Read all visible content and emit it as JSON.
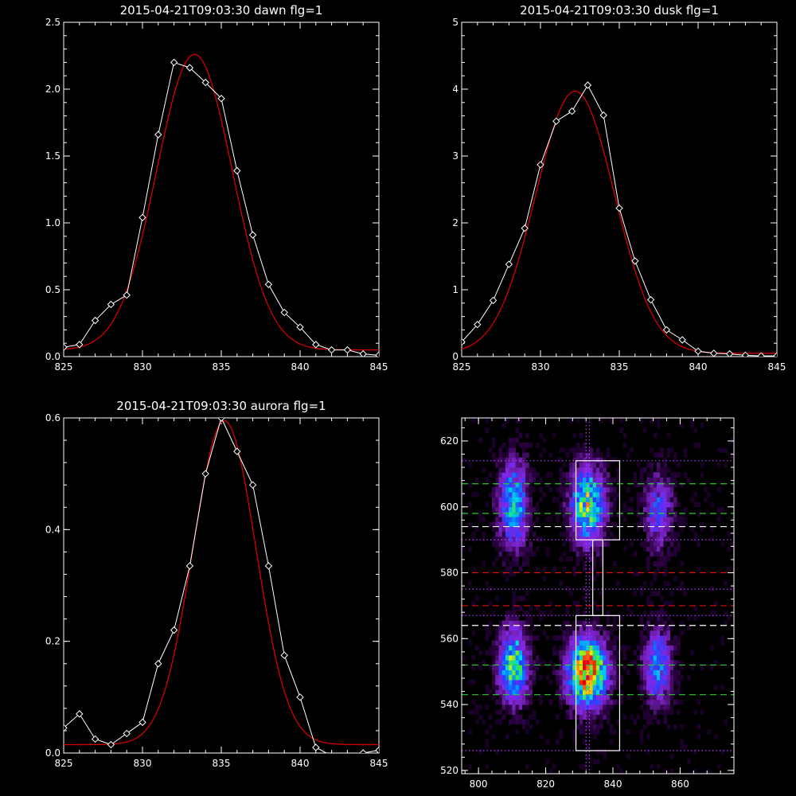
{
  "chart_data": [
    {
      "type": "line",
      "title": "2015-04-21T09:03:30 dawn flg=1",
      "xlim": [
        825,
        845
      ],
      "ylim": [
        0,
        2.5
      ],
      "xticks": [
        825,
        830,
        835,
        840,
        845
      ],
      "yticks": [
        0.0,
        0.5,
        1.0,
        1.5,
        2.0,
        2.5
      ],
      "ytick_labels": [
        "0.0",
        "0.5",
        "1.0",
        "1.5",
        "2.0",
        "2.5"
      ],
      "series": [
        {
          "style": "white-diamond-line",
          "x": [
            825,
            826,
            827,
            828,
            829,
            830,
            831,
            832,
            833,
            834,
            835,
            836,
            837,
            838,
            839,
            840,
            841,
            842,
            843,
            844,
            845
          ],
          "y": [
            0.07,
            0.09,
            0.27,
            0.39,
            0.46,
            1.04,
            1.66,
            2.2,
            2.16,
            2.05,
            1.93,
            1.39,
            0.91,
            0.54,
            0.33,
            0.22,
            0.09,
            0.05,
            0.05,
            0.02,
            0.01
          ]
        },
        {
          "style": "red-fit",
          "fit": {
            "amp": 2.21,
            "center": 833.3,
            "sigma": 2.4,
            "base": 0.05
          }
        }
      ],
      "colors": {
        "data": "#ffffff",
        "fit": "#d40000"
      }
    },
    {
      "type": "line",
      "title": "2015-04-21T09:03:30 dusk flg=1",
      "xlim": [
        825,
        845
      ],
      "ylim": [
        0,
        5
      ],
      "xticks": [
        825,
        830,
        835,
        840,
        845
      ],
      "yticks": [
        0,
        1,
        2,
        3,
        4,
        5
      ],
      "ytick_labels": [
        "0",
        "1",
        "2",
        "3",
        "4",
        "5"
      ],
      "series": [
        {
          "style": "white-diamond-line",
          "x": [
            825,
            826,
            827,
            828,
            829,
            830,
            831,
            832,
            833,
            834,
            835,
            836,
            837,
            838,
            839,
            840,
            841,
            842,
            843,
            844,
            845
          ],
          "y": [
            0.22,
            0.48,
            0.84,
            1.38,
            1.92,
            2.87,
            3.52,
            3.67,
            4.06,
            3.61,
            2.22,
            1.43,
            0.85,
            0.4,
            0.25,
            0.08,
            0.05,
            0.04,
            0.02,
            0.01,
            0.01
          ]
        },
        {
          "style": "red-fit",
          "fit": {
            "amp": 3.92,
            "center": 832.2,
            "sigma": 2.5,
            "base": 0.05
          }
        }
      ],
      "colors": {
        "data": "#ffffff",
        "fit": "#d40000"
      }
    },
    {
      "type": "line",
      "title": "2015-04-21T09:03:30 aurora flg=1",
      "xlim": [
        825,
        845
      ],
      "ylim": [
        0,
        0.6
      ],
      "xticks": [
        825,
        830,
        835,
        840,
        845
      ],
      "yticks": [
        0.0,
        0.2,
        0.4,
        0.6
      ],
      "ytick_labels": [
        "0.0",
        "0.2",
        "0.4",
        "0.6"
      ],
      "series": [
        {
          "style": "white-diamond-line",
          "x": [
            825,
            826,
            827,
            828,
            829,
            830,
            831,
            832,
            833,
            834,
            835,
            836,
            837,
            838,
            839,
            840,
            841,
            842,
            843,
            844,
            845
          ],
          "y": [
            0.045,
            0.07,
            0.025,
            0.015,
            0.035,
            0.055,
            0.16,
            0.22,
            0.335,
            0.5,
            0.6,
            0.54,
            0.48,
            0.335,
            0.175,
            0.1,
            0.01,
            -0.005,
            -0.005,
            0.0,
            0.005
          ]
        },
        {
          "style": "red-fit",
          "fit": {
            "amp": 0.58,
            "center": 835.2,
            "sigma": 2.0,
            "base": 0.015
          }
        }
      ],
      "colors": {
        "data": "#ffffff",
        "fit": "#d40000"
      }
    },
    {
      "type": "heatmap",
      "xlim": [
        795,
        876
      ],
      "ylim": [
        519,
        627
      ],
      "xticks": [
        800,
        820,
        840,
        860
      ],
      "yticks": [
        520,
        540,
        560,
        580,
        600,
        620
      ],
      "blobs": [
        {
          "x": 810,
          "y": 600,
          "sx": 3,
          "sy": 9,
          "amp": 0.55
        },
        {
          "x": 810,
          "y": 551,
          "sx": 3,
          "sy": 8,
          "amp": 0.65
        },
        {
          "x": 832,
          "y": 600,
          "sx": 3.5,
          "sy": 8,
          "amp": 0.7
        },
        {
          "x": 832,
          "y": 549,
          "sx": 4,
          "sy": 7,
          "amp": 1.0
        },
        {
          "x": 853,
          "y": 598,
          "sx": 3,
          "sy": 8,
          "amp": 0.35
        },
        {
          "x": 853,
          "y": 551,
          "sx": 3,
          "sy": 8,
          "amp": 0.45
        }
      ],
      "white_boxes": [
        {
          "x": [
            829,
            842
          ],
          "y": [
            590,
            614
          ]
        },
        {
          "x": [
            829,
            842
          ],
          "y": [
            526,
            567
          ]
        },
        {
          "x": [
            834,
            837
          ],
          "y": [
            567,
            590
          ]
        }
      ],
      "vertical_dotted": [
        832,
        833
      ],
      "horizontal_lines": [
        {
          "y": 614,
          "color": "#b040ff",
          "style": "dotted"
        },
        {
          "y": 607,
          "color": "#30c830",
          "style": "dashed"
        },
        {
          "y": 598,
          "color": "#30c830",
          "style": "dashed"
        },
        {
          "y": 594,
          "color": "#ffffff",
          "style": "dashed"
        },
        {
          "y": 590,
          "color": "#b040ff",
          "style": "dotted"
        },
        {
          "y": 580,
          "color": "#e01010",
          "style": "dashed"
        },
        {
          "y": 575,
          "color": "#b040ff",
          "style": "dotted"
        },
        {
          "y": 570,
          "color": "#e01010",
          "style": "dashed"
        },
        {
          "y": 567,
          "color": "#b040ff",
          "style": "dotted"
        },
        {
          "y": 564,
          "color": "#ffffff",
          "style": "dashed"
        },
        {
          "y": 552,
          "color": "#30c830",
          "style": "dashed"
        },
        {
          "y": 543,
          "color": "#30c830",
          "style": "dashed"
        },
        {
          "y": 526,
          "color": "#b040ff",
          "style": "dotted"
        }
      ]
    }
  ]
}
